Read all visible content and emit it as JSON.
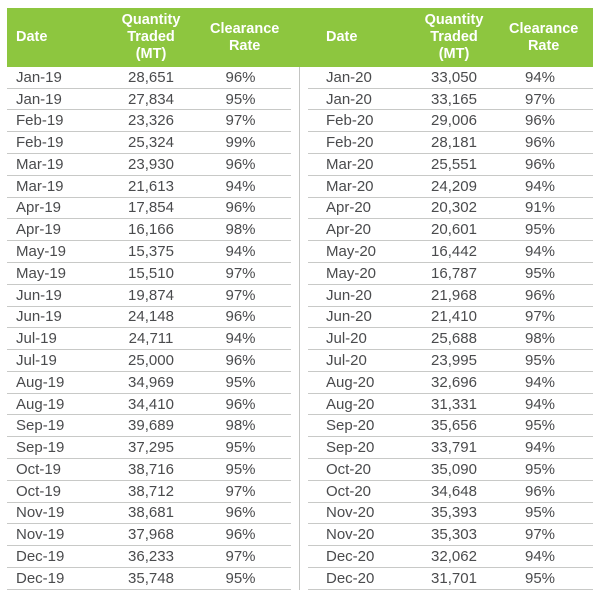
{
  "colors": {
    "header_bg": "#8dc63f",
    "header_text": "#ffffff",
    "body_text": "#4a4b4d",
    "grid_line": "#c8c9c7",
    "divider": "#c3c4c2"
  },
  "chart_data": {
    "type": "table",
    "columns": [
      "Date",
      "Quantity Traded (MT)",
      "Clearance Rate"
    ],
    "layout": {
      "tables_side_by_side": 2,
      "rows_per_table": 24,
      "grid": "horizontal light-gray row lines, green header band"
    },
    "left_rows": [
      [
        "Jan-19",
        "28,651",
        "96%"
      ],
      [
        "Jan-19",
        "27,834",
        "95%"
      ],
      [
        "Feb-19",
        "23,326",
        "97%"
      ],
      [
        "Feb-19",
        "25,324",
        "99%"
      ],
      [
        "Mar-19",
        "23,930",
        "96%"
      ],
      [
        "Mar-19",
        "21,613",
        "94%"
      ],
      [
        "Apr-19",
        "17,854",
        "96%"
      ],
      [
        "Apr-19",
        "16,166",
        "98%"
      ],
      [
        "May-19",
        "15,375",
        "94%"
      ],
      [
        "May-19",
        "15,510",
        "97%"
      ],
      [
        "Jun-19",
        "19,874",
        "97%"
      ],
      [
        "Jun-19",
        "24,148",
        "96%"
      ],
      [
        "Jul-19",
        "24,711",
        "94%"
      ],
      [
        "Jul-19",
        "25,000",
        "96%"
      ],
      [
        "Aug-19",
        "34,969",
        "95%"
      ],
      [
        "Aug-19",
        "34,410",
        "96%"
      ],
      [
        "Sep-19",
        "39,689",
        "98%"
      ],
      [
        "Sep-19",
        "37,295",
        "95%"
      ],
      [
        "Oct-19",
        "38,716",
        "95%"
      ],
      [
        "Oct-19",
        "38,712",
        "97%"
      ],
      [
        "Nov-19",
        "38,681",
        "96%"
      ],
      [
        "Nov-19",
        "37,968",
        "96%"
      ],
      [
        "Dec-19",
        "36,233",
        "97%"
      ],
      [
        "Dec-19",
        "35,748",
        "95%"
      ]
    ],
    "right_rows": [
      [
        "Jan-20",
        "33,050",
        "94%"
      ],
      [
        "Jan-20",
        "33,165",
        "97%"
      ],
      [
        "Feb-20",
        "29,006",
        "96%"
      ],
      [
        "Feb-20",
        "28,181",
        "96%"
      ],
      [
        "Mar-20",
        "25,551",
        "96%"
      ],
      [
        "Mar-20",
        "24,209",
        "94%"
      ],
      [
        "Apr-20",
        "20,302",
        "91%"
      ],
      [
        "Apr-20",
        "20,601",
        "95%"
      ],
      [
        "May-20",
        "16,442",
        "94%"
      ],
      [
        "May-20",
        "16,787",
        "95%"
      ],
      [
        "Jun-20",
        "21,968",
        "96%"
      ],
      [
        "Jun-20",
        "21,410",
        "97%"
      ],
      [
        "Jul-20",
        "25,688",
        "98%"
      ],
      [
        "Jul-20",
        "23,995",
        "95%"
      ],
      [
        "Aug-20",
        "32,696",
        "94%"
      ],
      [
        "Aug-20",
        "31,331",
        "94%"
      ],
      [
        "Sep-20",
        "35,656",
        "95%"
      ],
      [
        "Sep-20",
        "33,791",
        "94%"
      ],
      [
        "Oct-20",
        "35,090",
        "95%"
      ],
      [
        "Oct-20",
        "34,648",
        "96%"
      ],
      [
        "Nov-20",
        "35,393",
        "95%"
      ],
      [
        "Nov-20",
        "35,303",
        "97%"
      ],
      [
        "Dec-20",
        "32,062",
        "94%"
      ],
      [
        "Dec-20",
        "31,701",
        "95%"
      ]
    ]
  }
}
